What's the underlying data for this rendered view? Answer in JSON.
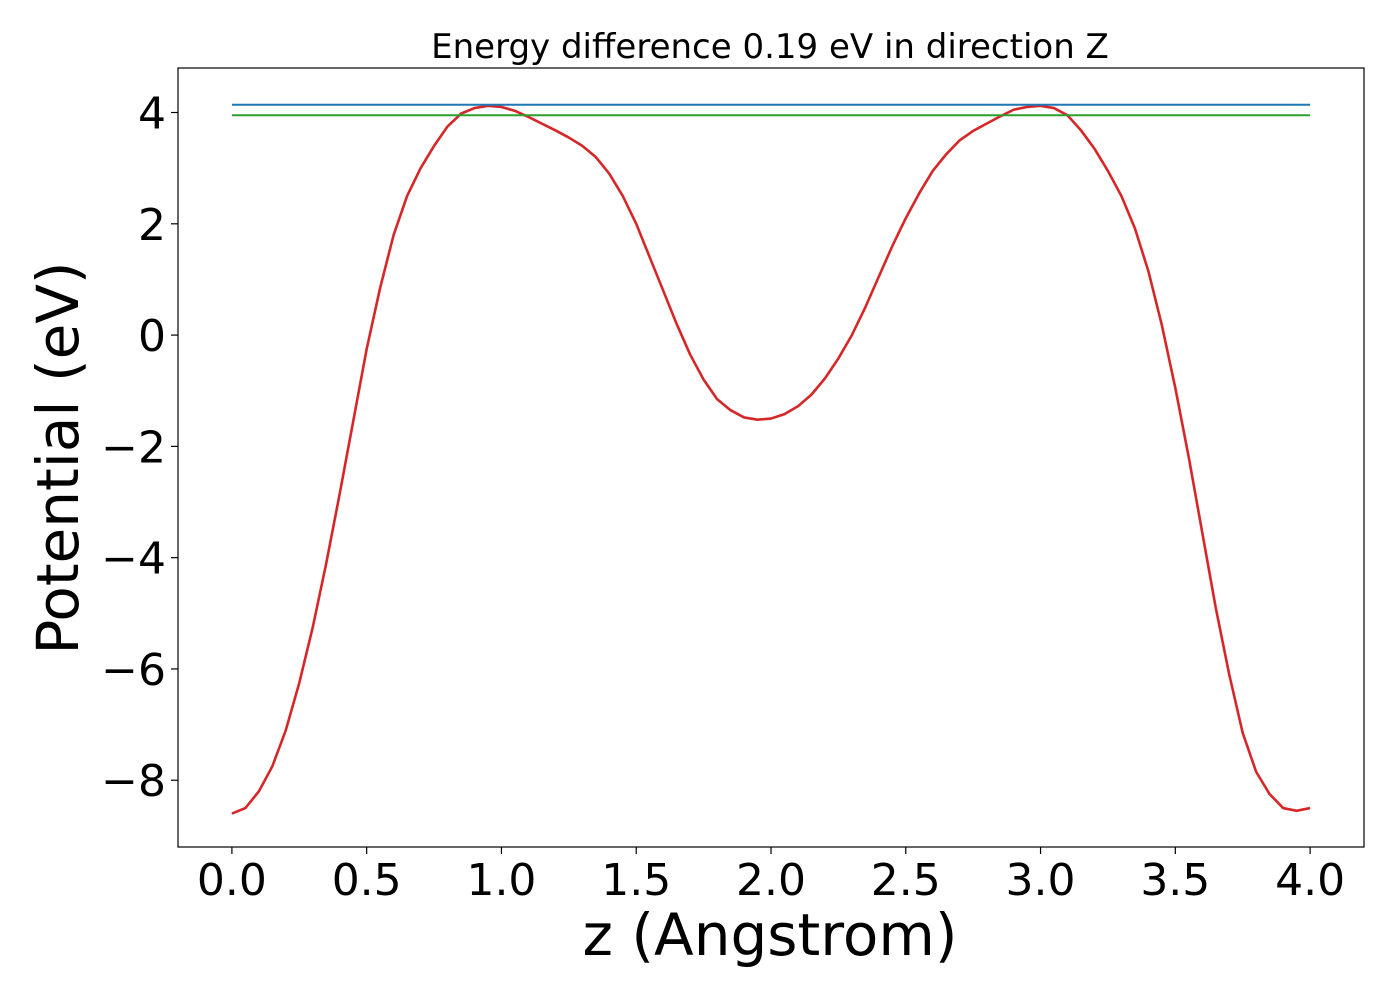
{
  "chart_data": {
    "type": "line",
    "title": "Energy difference 0.19 eV in direction Z",
    "xlabel": "z (Angstrom)",
    "ylabel": "Potential (eV)",
    "xlim": [
      -0.2,
      4.2
    ],
    "ylim": [
      -9.2,
      4.8
    ],
    "xticks": [
      0.0,
      0.5,
      1.0,
      1.5,
      2.0,
      2.5,
      3.0,
      3.5,
      4.0
    ],
    "xtick_labels": [
      "0.0",
      "0.5",
      "1.0",
      "1.5",
      "2.0",
      "2.5",
      "3.0",
      "3.5",
      "4.0"
    ],
    "yticks": [
      -8,
      -6,
      -4,
      -2,
      0,
      2,
      4
    ],
    "ytick_labels": [
      "−8",
      "−6",
      "−4",
      "−2",
      "0",
      "2",
      "4"
    ],
    "grid": false,
    "legend": "none",
    "series": [
      {
        "color": "#d62728",
        "x": [
          0.0,
          0.05,
          0.1,
          0.15,
          0.2,
          0.25,
          0.3,
          0.35,
          0.4,
          0.45,
          0.5,
          0.55,
          0.6,
          0.65,
          0.7,
          0.75,
          0.8,
          0.85,
          0.9,
          0.95,
          1.0,
          1.05,
          1.1,
          1.15,
          1.2,
          1.25,
          1.3,
          1.35,
          1.4,
          1.45,
          1.5,
          1.55,
          1.6,
          1.65,
          1.7,
          1.75,
          1.8,
          1.85,
          1.9,
          1.95,
          2.0,
          2.05,
          2.1,
          2.15,
          2.2,
          2.25,
          2.3,
          2.35,
          2.4,
          2.45,
          2.5,
          2.55,
          2.6,
          2.65,
          2.7,
          2.75,
          2.8,
          2.85,
          2.9,
          2.95,
          3.0,
          3.05,
          3.1,
          3.15,
          3.2,
          3.25,
          3.3,
          3.35,
          3.4,
          3.45,
          3.5,
          3.55,
          3.6,
          3.65,
          3.7,
          3.75,
          3.8,
          3.85,
          3.9,
          3.95,
          4.0
        ],
        "y": [
          -8.6,
          -8.5,
          -8.2,
          -7.75,
          -7.1,
          -6.25,
          -5.25,
          -4.1,
          -2.85,
          -1.55,
          -0.25,
          0.85,
          1.8,
          2.5,
          3.0,
          3.4,
          3.75,
          3.98,
          4.08,
          4.12,
          4.1,
          4.03,
          3.92,
          3.8,
          3.68,
          3.55,
          3.4,
          3.2,
          2.9,
          2.5,
          2.0,
          1.4,
          0.8,
          0.2,
          -0.35,
          -0.8,
          -1.15,
          -1.35,
          -1.48,
          -1.52,
          -1.5,
          -1.42,
          -1.28,
          -1.07,
          -0.78,
          -0.42,
          0.0,
          0.5,
          1.05,
          1.6,
          2.1,
          2.55,
          2.95,
          3.25,
          3.5,
          3.67,
          3.8,
          3.93,
          4.05,
          4.1,
          4.12,
          4.08,
          3.95,
          3.68,
          3.35,
          2.95,
          2.5,
          1.92,
          1.15,
          0.18,
          -0.95,
          -2.2,
          -3.55,
          -4.9,
          -6.1,
          -7.15,
          -7.85,
          -8.25,
          -8.5,
          -8.55,
          -8.5
        ]
      },
      {
        "color": "#1f77b4",
        "x": [
          0.0,
          4.0
        ],
        "y": [
          4.14,
          4.14
        ]
      },
      {
        "color": "#2ca02c",
        "x": [
          0.0,
          4.0
        ],
        "y": [
          3.95,
          3.95
        ]
      }
    ]
  }
}
